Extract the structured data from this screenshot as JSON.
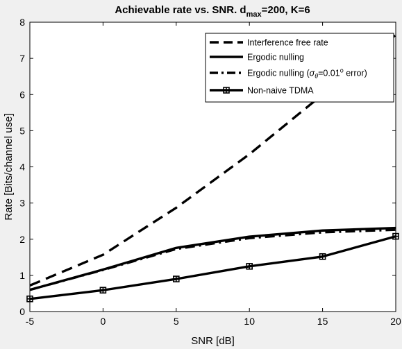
{
  "chart_data": {
    "type": "line",
    "title": {
      "main": "Achievable rate vs. SNR. d",
      "sub": "max",
      "suffix": "=200, K=6"
    },
    "xlabel": "SNR [dB]",
    "ylabel": "Rate [Bits/channel use]",
    "xlim": [
      -5,
      20
    ],
    "ylim": [
      0,
      8
    ],
    "xticks": [
      -5,
      0,
      5,
      10,
      15,
      20
    ],
    "yticks": [
      0,
      1,
      2,
      3,
      4,
      5,
      6,
      7,
      8
    ],
    "grid": false,
    "legend_position": "top-right",
    "x": [
      -5,
      0,
      5,
      10,
      15,
      20
    ],
    "series": [
      {
        "name": "Interference free rate",
        "style": "dashed",
        "values": [
          0.72,
          1.57,
          2.87,
          4.35,
          6.0,
          7.65
        ]
      },
      {
        "name": "Ergodic nulling",
        "style": "solid",
        "values": [
          0.6,
          1.16,
          1.76,
          2.07,
          2.24,
          2.31
        ]
      },
      {
        "name": "Ergodic nulling (σθ=0.01º error)",
        "legend_parts": {
          "prefix": "Ergodic nulling (",
          "sigma": "σ",
          "theta": "θ",
          "value": "=0.01",
          "degree": "o",
          "suffix": " error)"
        },
        "style": "dashdot",
        "values": [
          0.6,
          1.15,
          1.73,
          2.03,
          2.19,
          2.26
        ]
      },
      {
        "name": "Non-naive TDMA",
        "style": "solid-marker",
        "marker": "plus-square",
        "values": [
          0.35,
          0.59,
          0.9,
          1.25,
          1.52,
          2.08
        ]
      }
    ],
    "colors": {
      "background": "#f0f0f0",
      "axes_background": "#ffffff",
      "line": "#000000"
    }
  }
}
